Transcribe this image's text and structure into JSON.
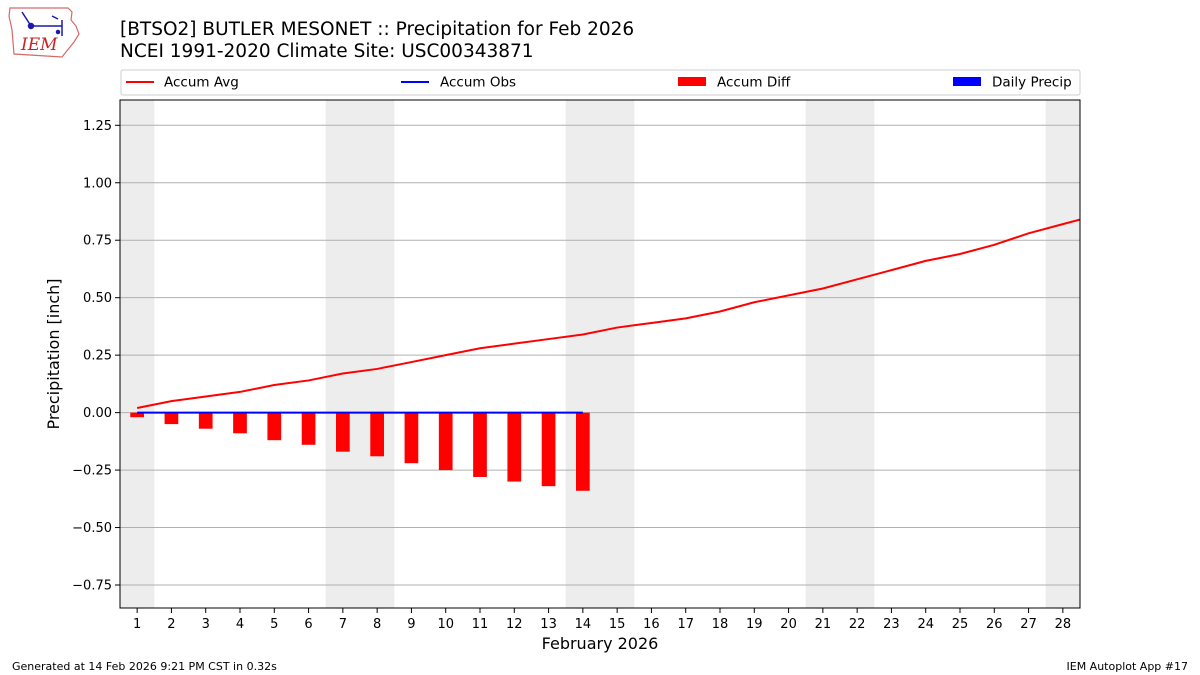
{
  "header": {
    "logo_text": "IEM",
    "title_line1": "[BTSO2] BUTLER MESONET :: Precipitation for Feb 2026",
    "title_line2": "NCEI 1991-2020 Climate Site: USC00343871"
  },
  "footer": {
    "generated": "Generated at 14 Feb 2026 9:21 PM CST in 0.32s",
    "app": "IEM Autoplot App #17"
  },
  "colors": {
    "avg": "#ff0000",
    "obs": "#0000ff",
    "diff": "#ff0000",
    "daily": "#0000ff",
    "weekend_shade": "#ededed",
    "grid": "#b0b0b0"
  },
  "chart_data": {
    "type": "line+bar",
    "xlabel": "February 2026",
    "ylabel": "Precipitation [inch]",
    "xlim": [
      0.5,
      28.5
    ],
    "ylim": [
      -0.85,
      1.36
    ],
    "yticks": [
      -0.75,
      -0.5,
      -0.25,
      0.0,
      0.25,
      0.5,
      0.75,
      1.0,
      1.25
    ],
    "ytick_labels": [
      "−0.75",
      "−0.50",
      "−0.25",
      "0.00",
      "0.25",
      "0.50",
      "0.75",
      "1.00",
      "1.25"
    ],
    "days": [
      1,
      2,
      3,
      4,
      5,
      6,
      7,
      8,
      9,
      10,
      11,
      12,
      13,
      14,
      15,
      16,
      17,
      18,
      19,
      20,
      21,
      22,
      23,
      24,
      25,
      26,
      27,
      28
    ],
    "day_labels": [
      "1",
      "2",
      "3",
      "4",
      "5",
      "6",
      "7",
      "8",
      "9",
      "10",
      "11",
      "12",
      "13",
      "14",
      "15",
      "16",
      "17",
      "18",
      "19",
      "20",
      "21",
      "22",
      "23",
      "24",
      "25",
      "26",
      "27",
      "28"
    ],
    "weekend_days": [
      1,
      7,
      8,
      14,
      15,
      21,
      22,
      28
    ],
    "legend": {
      "location": "top, above plot",
      "entries": [
        {
          "label": "Accum Avg",
          "kind": "line",
          "color": "#ff0000"
        },
        {
          "label": "Accum Obs",
          "kind": "line",
          "color": "#0000ff"
        },
        {
          "label": "Accum Diff",
          "kind": "bar",
          "color": "#ff0000"
        },
        {
          "label": "Daily Precip",
          "kind": "bar",
          "color": "#0000ff"
        }
      ]
    },
    "series": [
      {
        "name": "Accum Avg",
        "type": "line",
        "x": [
          1,
          2,
          3,
          4,
          5,
          6,
          7,
          8,
          9,
          10,
          11,
          12,
          13,
          14,
          15,
          16,
          17,
          18,
          19,
          20,
          21,
          22,
          23,
          24,
          25,
          26,
          27,
          28,
          28.5
        ],
        "values": [
          0.02,
          0.05,
          0.07,
          0.09,
          0.12,
          0.14,
          0.17,
          0.19,
          0.22,
          0.25,
          0.28,
          0.3,
          0.32,
          0.34,
          0.37,
          0.39,
          0.41,
          0.44,
          0.48,
          0.51,
          0.54,
          0.58,
          0.62,
          0.66,
          0.69,
          0.73,
          0.78,
          0.82,
          0.84
        ]
      },
      {
        "name": "Accum Obs",
        "type": "line",
        "x": [
          1,
          2,
          3,
          4,
          5,
          6,
          7,
          8,
          9,
          10,
          11,
          12,
          13,
          14
        ],
        "values": [
          0,
          0,
          0,
          0,
          0,
          0,
          0,
          0,
          0,
          0,
          0,
          0,
          0,
          0
        ]
      },
      {
        "name": "Accum Diff",
        "type": "bar",
        "x": [
          1,
          2,
          3,
          4,
          5,
          6,
          7,
          8,
          9,
          10,
          11,
          12,
          13,
          14
        ],
        "values": [
          -0.02,
          -0.05,
          -0.07,
          -0.09,
          -0.12,
          -0.14,
          -0.17,
          -0.19,
          -0.22,
          -0.25,
          -0.28,
          -0.3,
          -0.32,
          -0.34
        ]
      },
      {
        "name": "Daily Precip",
        "type": "bar",
        "x": [
          1,
          2,
          3,
          4,
          5,
          6,
          7,
          8,
          9,
          10,
          11,
          12,
          13,
          14
        ],
        "values": [
          0,
          0,
          0,
          0,
          0,
          0,
          0,
          0,
          0,
          0,
          0,
          0,
          0,
          0
        ]
      }
    ]
  }
}
